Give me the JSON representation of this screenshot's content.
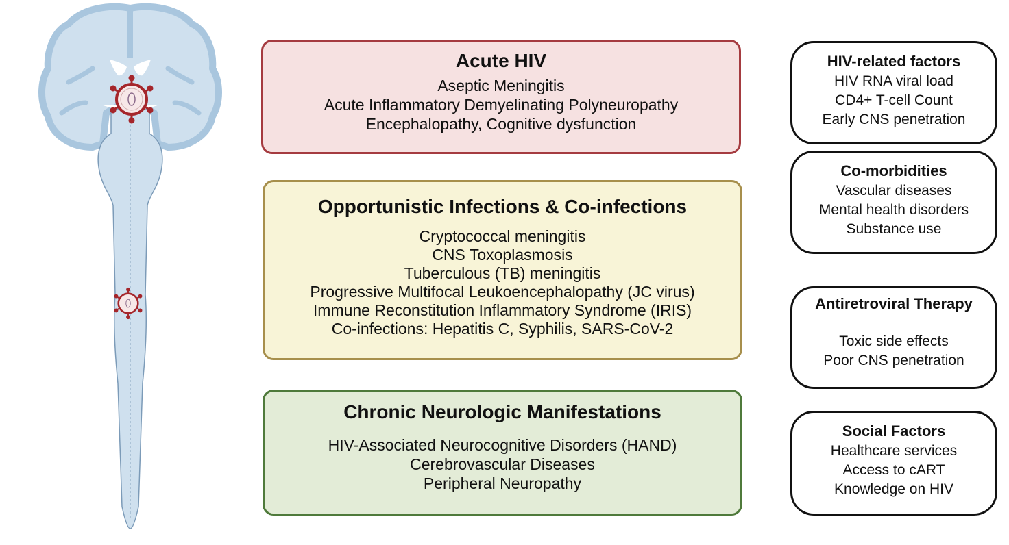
{
  "illustration": {
    "subject": "brain-and-spinal-cord",
    "virus_icon": "hiv-virus-icon",
    "colors": {
      "tissue": "#cfe0ee",
      "cortex": "#a9c6de",
      "virus": "#a5262b"
    }
  },
  "manifestations": [
    {
      "title": "Acute HIV",
      "color": "#f6e1e1",
      "border": "#a53b40",
      "items": [
        "Aseptic Meningitis",
        "Acute Inflammatory Demyelinating Polyneuropathy",
        "Encephalopathy, Cognitive dysfunction"
      ]
    },
    {
      "title": "Opportunistic Infections & Co-infections",
      "color": "#f8f4d7",
      "border": "#a78f4c",
      "items": [
        "Cryptococcal meningitis",
        "CNS Toxoplasmosis",
        "Tuberculous (TB) meningitis",
        "Progressive Multifocal Leukoencephalopathy (JC virus)",
        "Immune Reconstitution Inflammatory Syndrome (IRIS)",
        "Co-infections: Hepatitis C, Syphilis, SARS-CoV-2"
      ]
    },
    {
      "title": "Chronic Neurologic Manifestations",
      "color": "#e3ecd7",
      "border": "#4f7a3b",
      "items": [
        "HIV-Associated Neurocognitive Disorders (HAND)",
        "Cerebrovascular Diseases",
        "Peripheral Neuropathy"
      ]
    }
  ],
  "factors": [
    {
      "title": "HIV-related factors",
      "items": [
        "HIV RNA viral load",
        "CD4+ T-cell Count",
        "Early CNS penetration"
      ]
    },
    {
      "title": "Co-morbidities",
      "items": [
        "Vascular diseases",
        "Mental health disorders",
        "Substance use"
      ]
    },
    {
      "title": "Antiretroviral Therapy",
      "items": [
        "Toxic side effects",
        "Poor CNS penetration"
      ]
    },
    {
      "title": "Social Factors",
      "items": [
        "Healthcare services",
        "Access to cART",
        "Knowledge on HIV"
      ]
    }
  ]
}
